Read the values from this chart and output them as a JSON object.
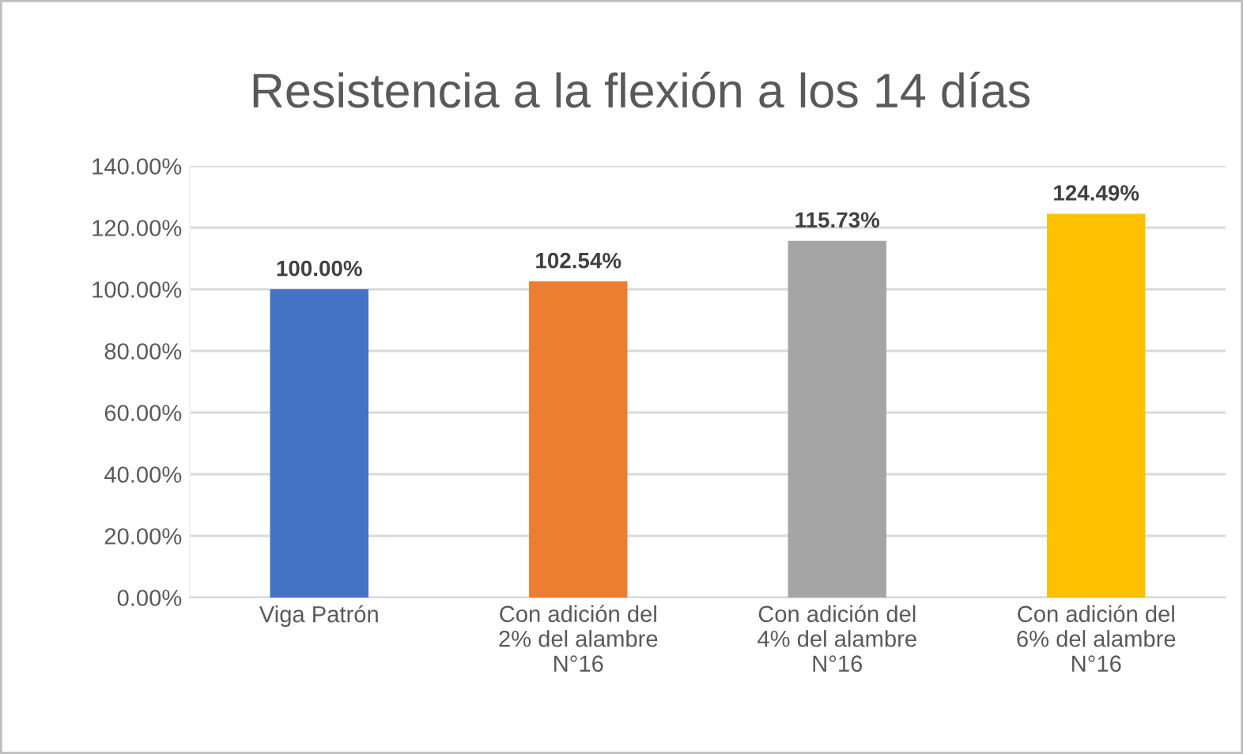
{
  "chart_data": {
    "type": "bar",
    "title": "Resistencia a la flexión a los 14 días",
    "categories": [
      "Viga Patrón",
      "Con adición del\n2% del alambre\nN°16",
      "Con adición del\n4% del alambre\nN°16",
      "Con adición del\n6% del alambre\nN°16"
    ],
    "values": [
      100.0,
      102.54,
      115.73,
      124.49
    ],
    "colors": [
      "#4472c4",
      "#ed7d31",
      "#a5a5a5",
      "#ffc000"
    ],
    "value_labels": [
      "100.00%",
      "102.54%",
      "115.73%",
      "124.49%"
    ],
    "ylim": [
      0,
      140
    ],
    "yticks": [
      {
        "value": 0,
        "label": "0.00%"
      },
      {
        "value": 20,
        "label": "20.00%"
      },
      {
        "value": 40,
        "label": "40.00%"
      },
      {
        "value": 60,
        "label": "60.00%"
      },
      {
        "value": 80,
        "label": "80.00%"
      },
      {
        "value": 100,
        "label": "100.00%"
      },
      {
        "value": 120,
        "label": "120.00%"
      },
      {
        "value": 140,
        "label": "140.00%"
      }
    ],
    "grid": "y",
    "legend": false
  }
}
